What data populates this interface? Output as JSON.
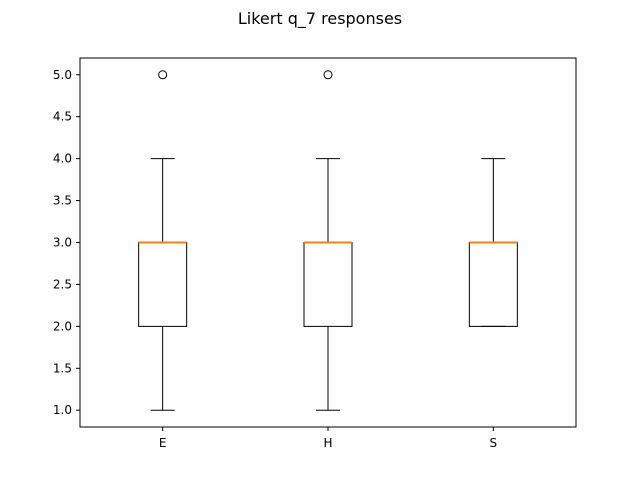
{
  "chart_data": {
    "type": "box",
    "title": "Likert q_7 responses",
    "xlabel": "",
    "ylabel": "",
    "categories": [
      "E",
      "H",
      "S"
    ],
    "boxes": [
      {
        "name": "E",
        "whisker_low": 1,
        "q1": 2,
        "median": 3,
        "q3": 3,
        "whisker_high": 4,
        "outliers": [
          5
        ]
      },
      {
        "name": "H",
        "whisker_low": 1,
        "q1": 2,
        "median": 3,
        "q3": 3,
        "whisker_high": 4,
        "outliers": [
          5
        ]
      },
      {
        "name": "S",
        "whisker_low": 2,
        "q1": 2,
        "median": 3,
        "q3": 3,
        "whisker_high": 4,
        "outliers": []
      }
    ],
    "ylim": [
      0.8,
      5.2
    ],
    "yticks": [
      "1.0",
      "1.5",
      "2.0",
      "2.5",
      "3.0",
      "3.5",
      "4.0",
      "4.5",
      "5.0"
    ],
    "grid": false,
    "colors": {
      "box": "#000000",
      "median": "#ff7f0e",
      "background": "#ffffff"
    }
  }
}
